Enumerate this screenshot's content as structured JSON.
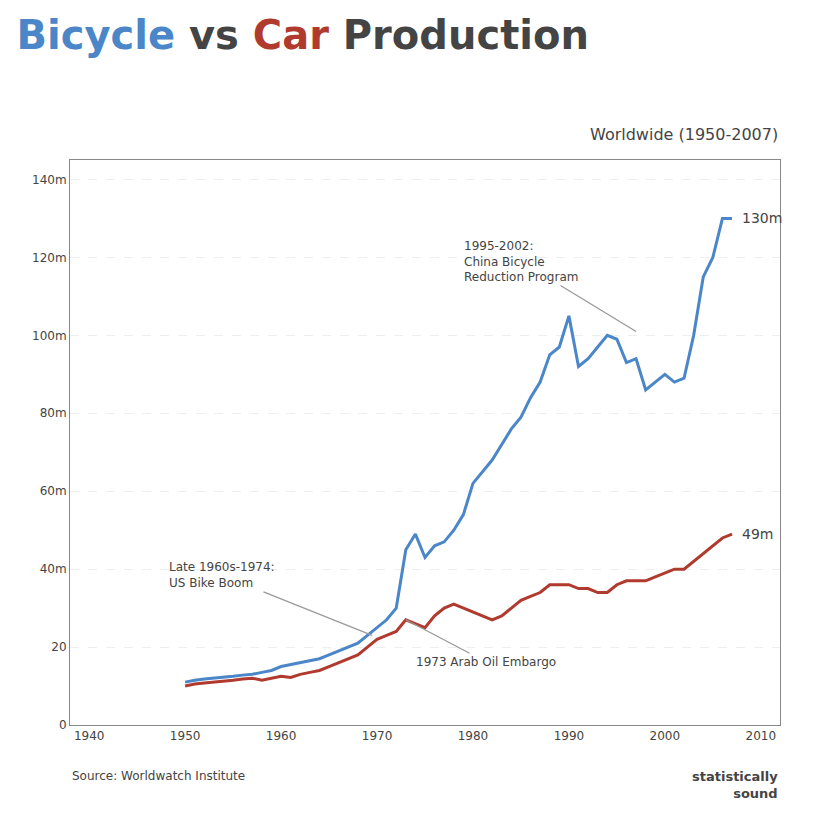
{
  "chart_data": {
    "type": "line",
    "title": [
      {
        "text": "Bicycle",
        "color": "#4a86c8"
      },
      {
        "text": " vs "
      },
      {
        "text": "Car",
        "color": "#b03a2e"
      },
      {
        "text": " Production"
      }
    ],
    "subtitle": "Worldwide (1950-2007)",
    "source": "Source: Worldwatch Institute",
    "brand": "statistically\nsound",
    "x": [
      1950,
      1951,
      1952,
      1953,
      1954,
      1955,
      1956,
      1957,
      1958,
      1959,
      1960,
      1961,
      1962,
      1963,
      1964,
      1965,
      1966,
      1967,
      1968,
      1969,
      1970,
      1971,
      1972,
      1973,
      1974,
      1975,
      1976,
      1977,
      1978,
      1979,
      1980,
      1981,
      1982,
      1983,
      1984,
      1985,
      1986,
      1987,
      1988,
      1989,
      1990,
      1991,
      1992,
      1993,
      1994,
      1995,
      1996,
      1997,
      1998,
      1999,
      2000,
      2001,
      2002,
      2003,
      2004,
      2005,
      2006,
      2007
    ],
    "series": [
      {
        "color": "#4a86c8",
        "values": [
          11,
          11.5,
          11.8,
          12,
          12.2,
          12.5,
          12.8,
          13,
          13.5,
          14,
          15,
          15.5,
          16,
          16.5,
          17,
          18,
          19,
          20,
          21,
          23,
          25,
          27,
          30,
          45,
          49,
          43,
          46,
          47,
          50,
          54,
          62,
          65,
          68,
          72,
          76,
          79,
          84,
          88,
          95,
          97,
          105,
          92,
          94,
          97,
          100,
          99,
          93,
          94,
          86,
          88,
          90,
          88,
          89,
          100,
          115,
          120,
          130,
          130
        ]
      },
      {
        "color": "#b03a2e",
        "values": [
          10,
          10.5,
          10.8,
          11,
          11.2,
          11.5,
          11.8,
          12,
          11.5,
          12,
          12.5,
          12.2,
          13,
          13.5,
          14,
          15,
          16,
          17,
          18,
          20,
          22,
          23,
          24,
          27,
          26,
          25,
          28,
          30,
          31,
          30,
          29,
          28,
          27,
          28,
          30,
          32,
          33,
          34,
          36,
          36,
          36,
          35,
          35,
          34,
          34,
          36,
          37,
          37,
          37,
          38,
          39,
          40,
          40,
          42,
          44,
          46,
          48,
          49
        ]
      }
    ],
    "xlim": [
      1938,
      2012
    ],
    "xticks": [
      1940,
      1950,
      1960,
      1970,
      1980,
      1990,
      2000,
      2010
    ],
    "ylim": [
      0,
      145
    ],
    "yticks": [
      0,
      20,
      {
        "value": 40,
        "label": "40m"
      },
      {
        "value": 60,
        "label": "60m"
      },
      {
        "value": 80,
        "label": "80m"
      },
      {
        "value": 100,
        "label": "100m"
      },
      {
        "value": 120,
        "label": "120m"
      },
      {
        "value": 140,
        "label": "140m"
      }
    ],
    "grid": "y",
    "end_labels": [
      {
        "text": "130m",
        "x": 2007,
        "y": 130
      },
      {
        "text": "49m",
        "x": 2007,
        "y": 49
      }
    ],
    "annotations": [
      {
        "text": "1995-2002:\nChina Bicycle\nReduction Program",
        "x": 1997,
        "y": 101
      },
      {
        "text": "Late 1960s-1974:\nUS Bike Boom",
        "x": 1969.5,
        "y": 23
      },
      {
        "text": "1973 Arab Oil Embargo",
        "x": 1973,
        "y": 27
      }
    ]
  }
}
